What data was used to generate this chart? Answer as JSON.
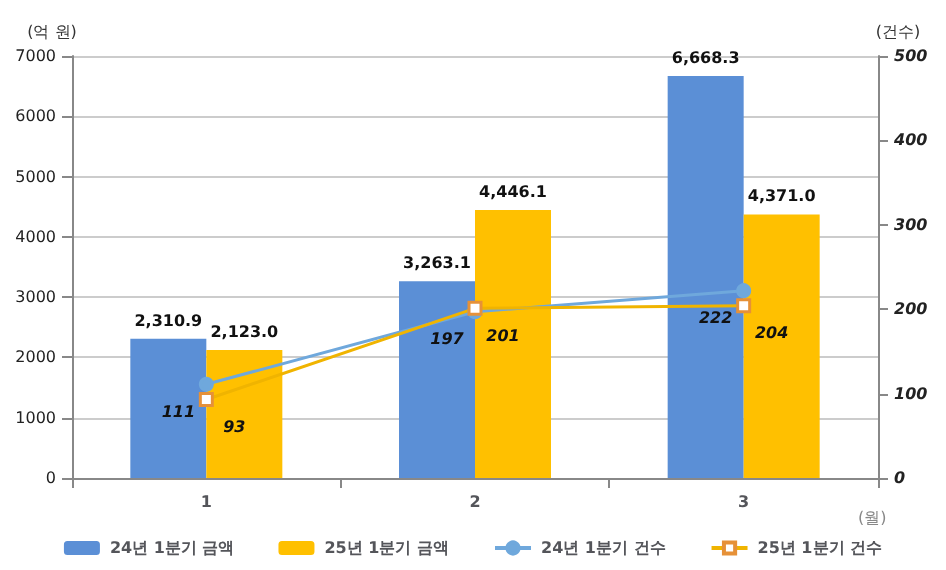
{
  "chart_data": {
    "type": "bar",
    "categories": [
      "1",
      "2",
      "3"
    ],
    "xlabel": "(월)",
    "ylabel": "(억 원)",
    "y2label": "(건수)",
    "ylim": [
      0,
      7000
    ],
    "yticks": [
      0,
      1000,
      2000,
      3000,
      4000,
      5000,
      6000,
      7000
    ],
    "y2lim": [
      0,
      500
    ],
    "y2ticks": [
      0,
      100,
      200,
      300,
      400,
      500
    ],
    "grid": "y",
    "legend": "bottom",
    "series": [
      {
        "name": "24년 1분기 금액",
        "color": "#5b8fd6",
        "values": [
          2310.9,
          3263.1,
          6668.3
        ],
        "value_labels": [
          "2,310.9",
          "3,263.1",
          "6,668.3"
        ]
      },
      {
        "name": "25년 1분기 금액",
        "color": "#ffc000",
        "values": [
          2123.0,
          4446.1,
          4371.0
        ],
        "value_labels": [
          "2,123.0",
          "4,446.1",
          "4,371.0"
        ]
      },
      {
        "name": "24년 1분기 건수",
        "type": "line",
        "axis": "y2",
        "color": "#6fa8dc",
        "marker": "circle",
        "values": [
          111,
          197,
          222
        ],
        "value_labels": [
          "111",
          "197",
          "222"
        ]
      },
      {
        "name": "25년 1분기 건수",
        "type": "line",
        "axis": "y2",
        "color": "#f0b400",
        "marker": "square",
        "values": [
          93,
          201,
          204
        ],
        "value_labels": [
          "93",
          "201",
          "204"
        ]
      }
    ]
  }
}
